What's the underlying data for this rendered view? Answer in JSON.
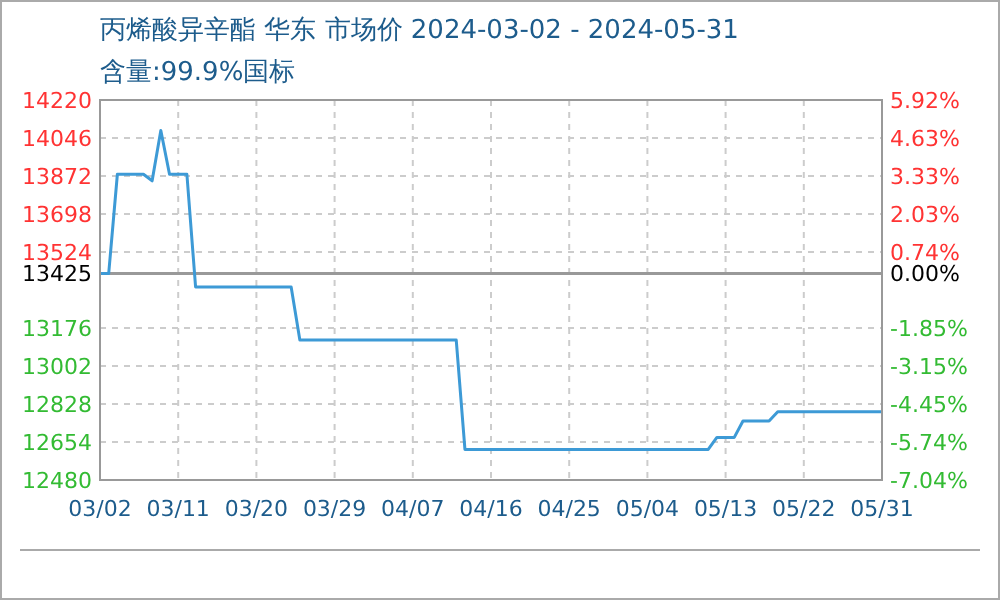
{
  "chart_data": {
    "type": "line",
    "title": "丙烯酸异辛酯 华东 市场价 2024-03-02 - 2024-05-31",
    "subtitle": "含量:99.9%国标",
    "x": [
      "2024-03-02",
      "2024-03-03",
      "2024-03-04",
      "2024-03-07",
      "2024-03-08",
      "2024-03-09",
      "2024-03-10",
      "2024-03-12",
      "2024-03-13",
      "2024-03-24",
      "2024-03-25",
      "2024-04-12",
      "2024-04-13",
      "2024-05-11",
      "2024-05-12",
      "2024-05-14",
      "2024-05-15",
      "2024-05-18",
      "2024-05-19",
      "2024-05-31"
    ],
    "series": [
      {
        "color": "#3d9ad6",
        "values": [
          13425,
          13425,
          13880,
          13880,
          13850,
          14080,
          13880,
          13880,
          13364,
          13364,
          13121,
          13121,
          12620,
          12620,
          12675,
          12675,
          12750,
          12750,
          12793,
          12793
        ]
      }
    ],
    "xlim": [
      "2024-03-02",
      "2024-05-31"
    ],
    "xticks": [
      {
        "value": "2024-03-02",
        "label": "03/02"
      },
      {
        "value": "2024-03-11",
        "label": "03/11"
      },
      {
        "value": "2024-03-20",
        "label": "03/20"
      },
      {
        "value": "2024-03-29",
        "label": "03/29"
      },
      {
        "value": "2024-04-07",
        "label": "04/07"
      },
      {
        "value": "2024-04-16",
        "label": "04/16"
      },
      {
        "value": "2024-04-25",
        "label": "04/25"
      },
      {
        "value": "2024-05-04",
        "label": "05/04"
      },
      {
        "value": "2024-05-13",
        "label": "05/13"
      },
      {
        "value": "2024-05-22",
        "label": "05/22"
      },
      {
        "value": "2024-05-31",
        "label": "05/31"
      }
    ],
    "ylim": [
      12480,
      14220
    ],
    "yticks": [
      12480,
      12654,
      12828,
      13002,
      13176,
      13425,
      13524,
      13698,
      13872,
      14046,
      14220
    ],
    "y2lim": [
      -7.04,
      5.92
    ],
    "y2ticks": [
      {
        "value": -7.04,
        "label": "-7.04%"
      },
      {
        "value": -5.74,
        "label": "-5.74%"
      },
      {
        "value": -4.45,
        "label": "-4.45%"
      },
      {
        "value": -3.15,
        "label": "-3.15%"
      },
      {
        "value": -1.85,
        "label": "-1.85%"
      },
      {
        "value": 0,
        "label": "0.00%"
      },
      {
        "value": 0.74,
        "label": "0.74%"
      },
      {
        "value": 2.03,
        "label": "2.03%"
      },
      {
        "value": 3.33,
        "label": "3.33%"
      },
      {
        "value": 4.63,
        "label": "4.63%"
      },
      {
        "value": 5.92,
        "label": "5.92%"
      }
    ],
    "ref_lines": [
      {
        "axis": "y",
        "value": 13425,
        "color": "#999999"
      }
    ],
    "grid": true,
    "marker": "none",
    "line_style": "solid"
  }
}
